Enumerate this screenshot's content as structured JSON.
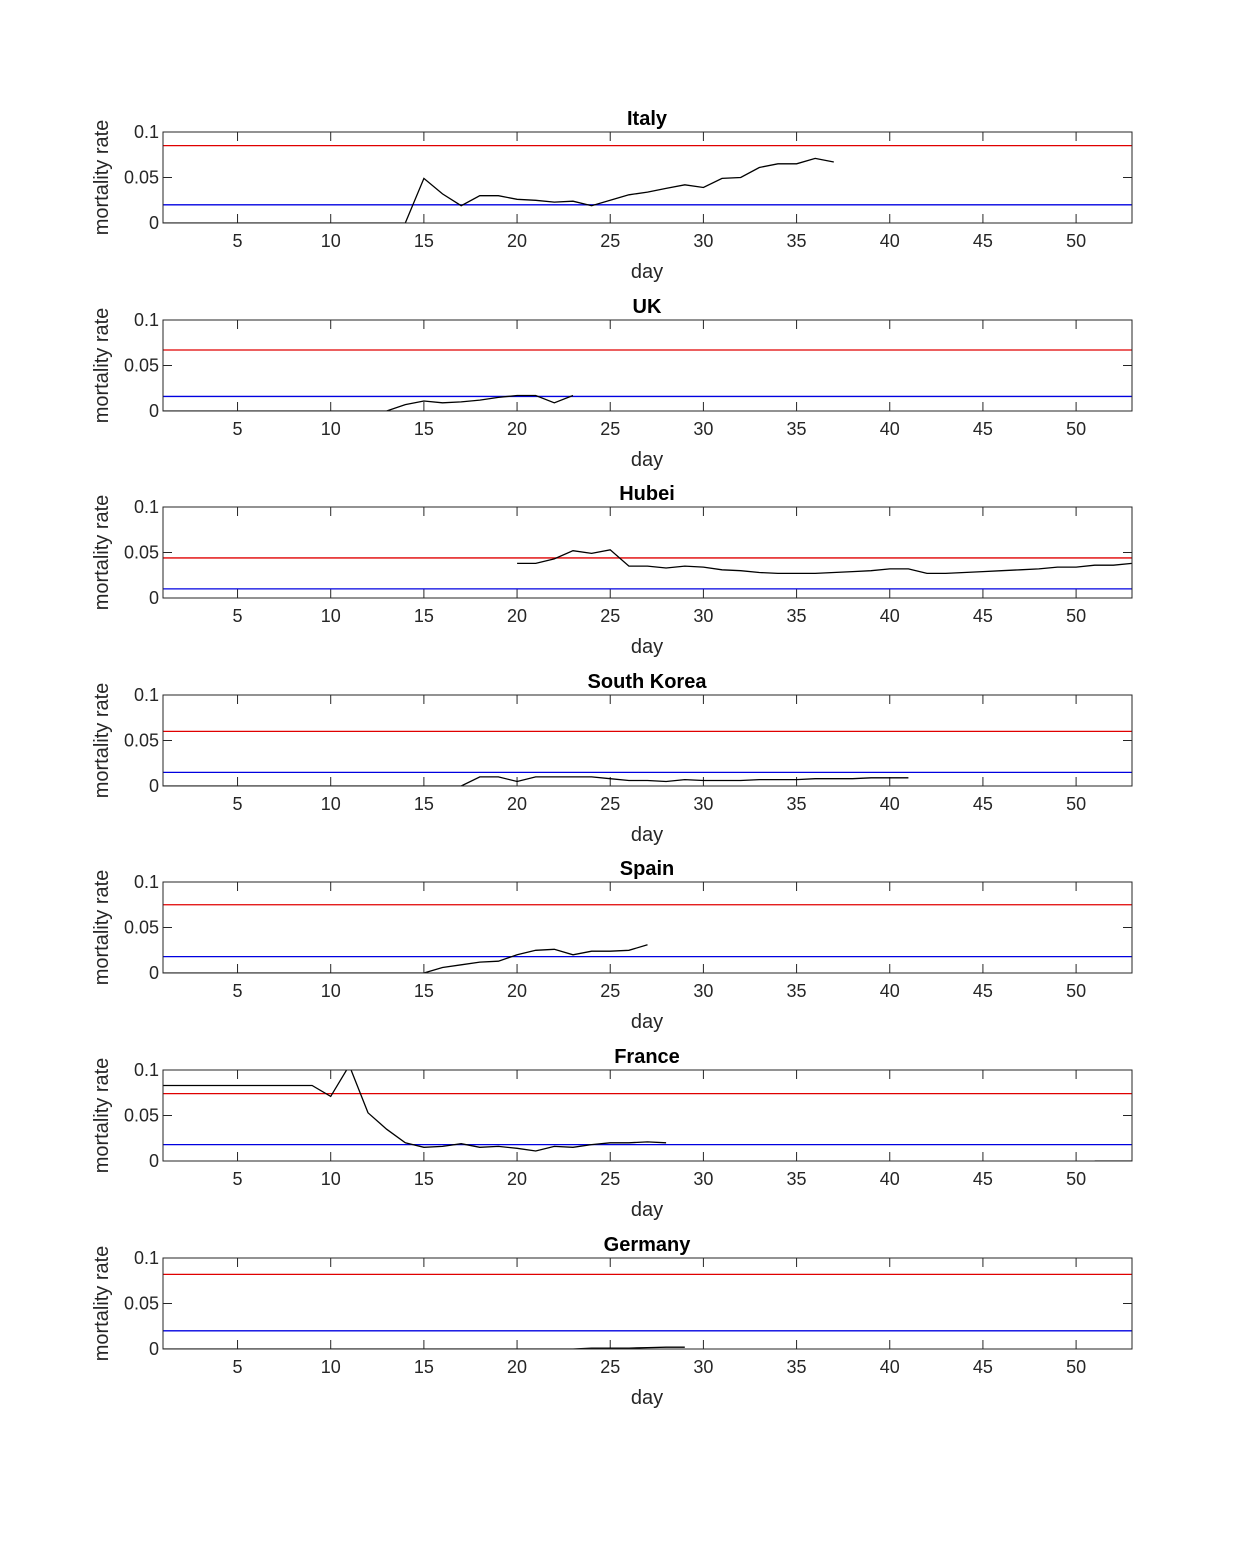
{
  "figure": {
    "x_tick_labels": [
      "5",
      "10",
      "15",
      "20",
      "25",
      "30",
      "35",
      "40",
      "45",
      "50"
    ],
    "y_tick_labels": [
      "0",
      "0.05",
      "0.1"
    ]
  },
  "chart_data": [
    {
      "type": "line",
      "title": "Italy",
      "xlabel": "day",
      "ylabel": "mortality rate",
      "xlim": [
        1,
        53
      ],
      "ylim": [
        0,
        0.1
      ],
      "xticks": [
        5,
        10,
        15,
        20,
        25,
        30,
        35,
        40,
        45,
        50
      ],
      "yticks": [
        0,
        0.05,
        0.1
      ],
      "hlines": [
        {
          "y": 0.085,
          "color": "#e00000"
        },
        {
          "y": 0.02,
          "color": "#0000e0"
        }
      ],
      "series": [
        {
          "color": "#000000",
          "x": [
            1,
            14,
            15,
            16,
            17,
            18,
            19,
            20,
            21,
            22,
            23,
            24,
            25,
            26,
            27,
            28,
            29,
            30,
            31,
            32,
            33,
            34,
            35,
            36,
            37
          ],
          "y": [
            0,
            0,
            0.049,
            0.032,
            0.019,
            0.03,
            0.03,
            0.026,
            0.025,
            0.023,
            0.024,
            0.019,
            0.025,
            0.031,
            0.034,
            0.038,
            0.042,
            0.039,
            0.049,
            0.05,
            0.061,
            0.065,
            0.065,
            0.071,
            0.067
          ]
        }
      ]
    },
    {
      "type": "line",
      "title": "UK",
      "xlabel": "day",
      "ylabel": "mortality rate",
      "xlim": [
        1,
        53
      ],
      "ylim": [
        0,
        0.1
      ],
      "xticks": [
        5,
        10,
        15,
        20,
        25,
        30,
        35,
        40,
        45,
        50
      ],
      "yticks": [
        0,
        0.05,
        0.1
      ],
      "hlines": [
        {
          "y": 0.067,
          "color": "#e00000"
        },
        {
          "y": 0.016,
          "color": "#0000e0"
        }
      ],
      "series": [
        {
          "color": "#000000",
          "x": [
            1,
            13,
            14,
            15,
            16,
            17,
            18,
            19,
            20,
            21,
            22,
            23
          ],
          "y": [
            0,
            0,
            0.007,
            0.011,
            0.009,
            0.01,
            0.012,
            0.015,
            0.017,
            0.017,
            0.009,
            0.017
          ]
        }
      ]
    },
    {
      "type": "line",
      "title": "Hubei",
      "xlabel": "day",
      "ylabel": "mortality rate",
      "xlim": [
        1,
        53
      ],
      "ylim": [
        0,
        0.1
      ],
      "xticks": [
        5,
        10,
        15,
        20,
        25,
        30,
        35,
        40,
        45,
        50
      ],
      "yticks": [
        0,
        0.05,
        0.1
      ],
      "hlines": [
        {
          "y": 0.044,
          "color": "#e00000"
        },
        {
          "y": 0.01,
          "color": "#0000e0"
        }
      ],
      "series": [
        {
          "color": "#000000",
          "x": [
            20,
            21,
            22,
            23,
            24,
            25,
            26,
            27,
            28,
            29,
            30,
            31,
            32,
            33,
            34,
            35,
            36,
            37,
            38,
            39,
            40,
            41,
            42,
            43,
            44,
            45,
            46,
            47,
            48,
            49,
            50,
            51,
            52,
            53
          ],
          "y": [
            0.038,
            0.038,
            0.043,
            0.052,
            0.049,
            0.053,
            0.035,
            0.035,
            0.033,
            0.035,
            0.034,
            0.031,
            0.03,
            0.028,
            0.027,
            0.027,
            0.027,
            0.028,
            0.029,
            0.03,
            0.032,
            0.032,
            0.027,
            0.027,
            0.028,
            0.029,
            0.03,
            0.031,
            0.032,
            0.034,
            0.034,
            0.036,
            0.036,
            0.038
          ]
        }
      ]
    },
    {
      "type": "line",
      "title": "South Korea",
      "xlabel": "day",
      "ylabel": "mortality rate",
      "xlim": [
        1,
        53
      ],
      "ylim": [
        0,
        0.1
      ],
      "xticks": [
        5,
        10,
        15,
        20,
        25,
        30,
        35,
        40,
        45,
        50
      ],
      "yticks": [
        0,
        0.05,
        0.1
      ],
      "hlines": [
        {
          "y": 0.06,
          "color": "#e00000"
        },
        {
          "y": 0.015,
          "color": "#0000e0"
        }
      ],
      "series": [
        {
          "color": "#000000",
          "x": [
            1,
            17,
            18,
            19,
            20,
            21,
            22,
            23,
            24,
            25,
            26,
            27,
            28,
            29,
            30,
            31,
            32,
            33,
            34,
            35,
            36,
            37,
            38,
            39,
            40,
            41
          ],
          "y": [
            0,
            0,
            0.01,
            0.01,
            0.005,
            0.01,
            0.01,
            0.01,
            0.01,
            0.008,
            0.006,
            0.006,
            0.005,
            0.007,
            0.006,
            0.006,
            0.006,
            0.007,
            0.007,
            0.007,
            0.008,
            0.008,
            0.008,
            0.009,
            0.009,
            0.009
          ]
        }
      ]
    },
    {
      "type": "line",
      "title": "Spain",
      "xlabel": "day",
      "ylabel": "mortality rate",
      "xlim": [
        1,
        53
      ],
      "ylim": [
        0,
        0.1
      ],
      "xticks": [
        5,
        10,
        15,
        20,
        25,
        30,
        35,
        40,
        45,
        50
      ],
      "yticks": [
        0,
        0.05,
        0.1
      ],
      "hlines": [
        {
          "y": 0.075,
          "color": "#e00000"
        },
        {
          "y": 0.018,
          "color": "#0000e0"
        }
      ],
      "series": [
        {
          "color": "#000000",
          "x": [
            1,
            15,
            16,
            17,
            18,
            19,
            20,
            21,
            22,
            23,
            24,
            25,
            26,
            27
          ],
          "y": [
            0,
            0,
            0.006,
            0.009,
            0.012,
            0.013,
            0.02,
            0.025,
            0.026,
            0.02,
            0.024,
            0.024,
            0.025,
            0.031
          ]
        }
      ]
    },
    {
      "type": "line",
      "title": "France",
      "xlabel": "day",
      "ylabel": "mortality rate",
      "xlim": [
        1,
        53
      ],
      "ylim": [
        0,
        0.1
      ],
      "xticks": [
        5,
        10,
        15,
        20,
        25,
        30,
        35,
        40,
        45,
        50
      ],
      "yticks": [
        0,
        0.05,
        0.1
      ],
      "hlines": [
        {
          "y": 0.074,
          "color": "#e00000"
        },
        {
          "y": 0.018,
          "color": "#0000e0"
        }
      ],
      "series": [
        {
          "color": "#000000",
          "x": [
            1,
            9,
            10,
            11,
            12,
            13,
            14,
            15,
            16,
            17,
            18,
            19,
            20,
            21,
            22,
            23,
            24,
            25,
            26,
            27,
            28
          ],
          "y": [
            0.083,
            0.083,
            0.071,
            0.105,
            0.053,
            0.035,
            0.02,
            0.015,
            0.016,
            0.019,
            0.015,
            0.016,
            0.014,
            0.011,
            0.016,
            0.015,
            0.018,
            0.02,
            0.02,
            0.021,
            0.02
          ]
        },
        {
          "color": "#000000",
          "x": [
            51,
            53
          ],
          "y": [
            0,
            0
          ]
        }
      ]
    },
    {
      "type": "line",
      "title": "Germany",
      "xlabel": "day",
      "ylabel": "mortality rate",
      "xlim": [
        1,
        53
      ],
      "ylim": [
        0,
        0.1
      ],
      "xticks": [
        5,
        10,
        15,
        20,
        25,
        30,
        35,
        40,
        45,
        50
      ],
      "yticks": [
        0,
        0.05,
        0.1
      ],
      "hlines": [
        {
          "y": 0.082,
          "color": "#e00000"
        },
        {
          "y": 0.02,
          "color": "#0000e0"
        }
      ],
      "series": [
        {
          "color": "#000000",
          "x": [
            1,
            23,
            24,
            25,
            26,
            27,
            28,
            29
          ],
          "y": [
            0,
            0,
            0.001,
            0.001,
            0.001,
            0.0015,
            0.002,
            0.002
          ]
        }
      ]
    }
  ]
}
